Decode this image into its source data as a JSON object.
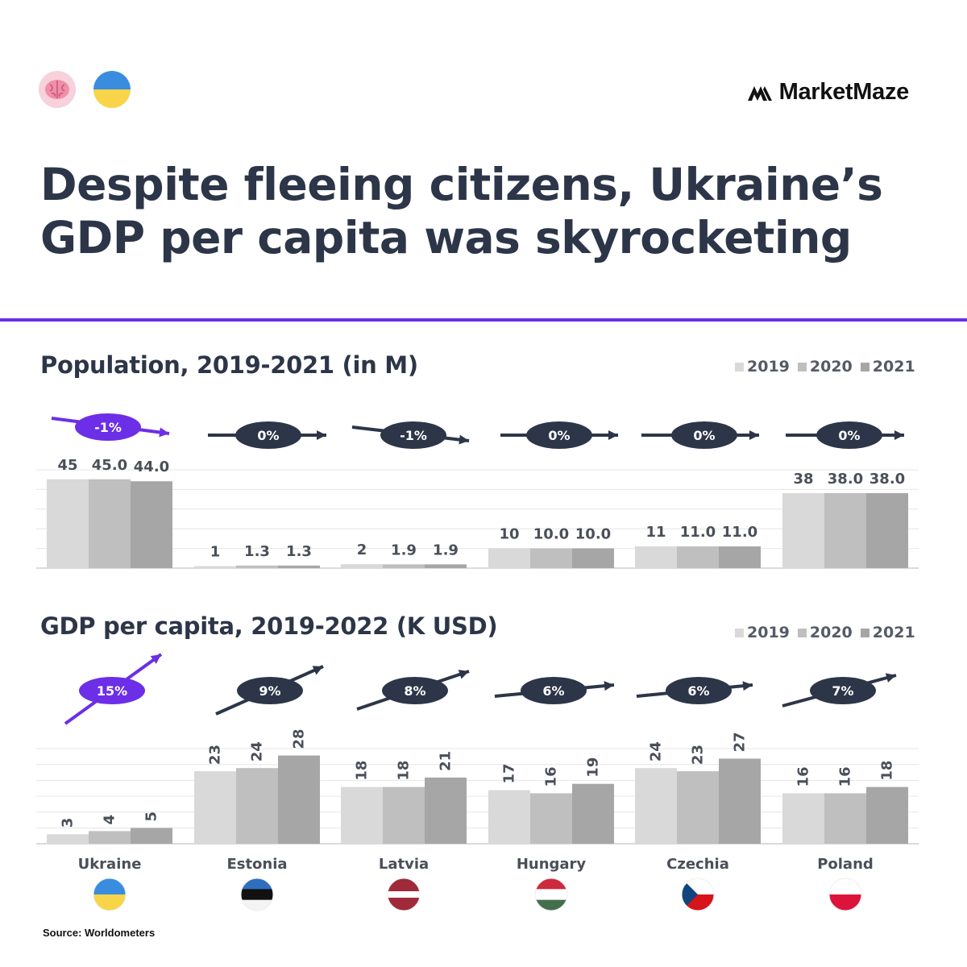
{
  "header": {
    "brand_name": "MarketMaze",
    "icons": [
      "brain-icon",
      "ukraine-flag-icon",
      "marketmaze-logo-icon"
    ]
  },
  "headline": "Despite fleeing citizens, Ukraine’s GDP per capita was skyrocketing",
  "source": "Source: Worldometers",
  "colors": {
    "bar_2019": "#d9d9d9",
    "bar_2020": "#bfbfbf",
    "bar_2021": "#a6a6a6",
    "accent": "#6c2ee6",
    "dark": "#2d3648",
    "label": "#4a4f59",
    "flags": {
      "Ukraine": [
        "#3a8dde",
        "#f8d448"
      ],
      "Estonia": [
        "#2f6fbf",
        "#111111",
        "#f4f4f4"
      ],
      "Latvia": [
        "#9e2a3a",
        "#ffffff"
      ],
      "Hungary": [
        "#cd2a3e",
        "#ffffff",
        "#436f4d"
      ],
      "Czechia": [
        "#ffffff",
        "#d7141a",
        "#11457e"
      ],
      "Poland": [
        "#ffffff",
        "#dc143c"
      ]
    }
  },
  "chart_data": [
    {
      "type": "bar",
      "title": "Population, 2019-2021 (in M)",
      "legend": [
        "2019",
        "2020",
        "2021"
      ],
      "legend_position": "top-right",
      "categories": [
        "Ukraine",
        "Estonia",
        "Latvia",
        "Hungary",
        "Czechia",
        "Poland"
      ],
      "series": [
        {
          "name": "2019",
          "values": [
            45,
            1,
            2,
            10,
            11,
            38
          ]
        },
        {
          "name": "2020",
          "values": [
            45.0,
            1.3,
            1.9,
            10.0,
            11.0,
            38.0
          ]
        },
        {
          "name": "2021",
          "values": [
            44.0,
            1.3,
            1.9,
            10.0,
            11.0,
            38.0
          ]
        }
      ],
      "value_labels": [
        [
          "45",
          "45.0",
          "44.0"
        ],
        [
          "1",
          "1.3",
          "1.3"
        ],
        [
          "2",
          "1.9",
          "1.9"
        ],
        [
          "10",
          "10.0",
          "10.0"
        ],
        [
          "11",
          "11.0",
          "11.0"
        ],
        [
          "38",
          "38.0",
          "38.0"
        ]
      ],
      "change_labels": [
        "-1%",
        "0%",
        "-1%",
        "0%",
        "0%",
        "0%"
      ],
      "highlighted_category": "Ukraine",
      "ylim": [
        0,
        48
      ],
      "grid": true,
      "xlabel": "",
      "ylabel": ""
    },
    {
      "type": "bar",
      "title": "GDP per capita, 2019-2022 (K USD)",
      "legend": [
        "2019",
        "2020",
        "2021"
      ],
      "legend_position": "top-right",
      "categories": [
        "Ukraine",
        "Estonia",
        "Latvia",
        "Hungary",
        "Czechia",
        "Poland"
      ],
      "series": [
        {
          "name": "2019",
          "values": [
            3,
            23,
            18,
            17,
            24,
            16
          ]
        },
        {
          "name": "2020",
          "values": [
            4,
            24,
            18,
            16,
            23,
            16
          ]
        },
        {
          "name": "2021",
          "values": [
            5,
            28,
            21,
            19,
            27,
            18
          ]
        }
      ],
      "value_labels": [
        [
          "3",
          "4",
          "5"
        ],
        [
          "23",
          "24",
          "28"
        ],
        [
          "18",
          "18",
          "21"
        ],
        [
          "17",
          "16",
          "19"
        ],
        [
          "24",
          "23",
          "27"
        ],
        [
          "16",
          "16",
          "18"
        ]
      ],
      "change_labels": [
        "15%",
        "9%",
        "8%",
        "6%",
        "6%",
        "7%"
      ],
      "highlighted_category": "Ukraine",
      "ylim": [
        0,
        30
      ],
      "grid": true,
      "xlabel": "",
      "ylabel": ""
    }
  ]
}
